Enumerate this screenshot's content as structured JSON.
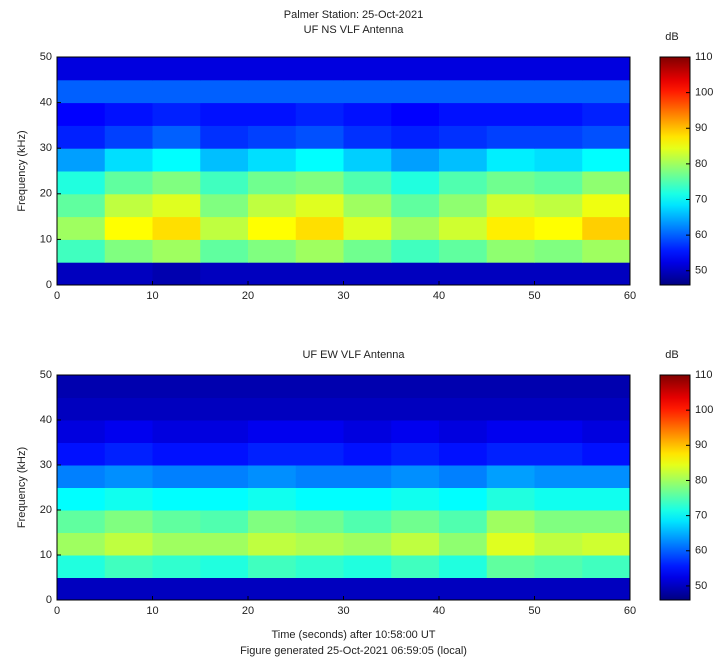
{
  "chart_data": [
    {
      "type": "heatmap",
      "title": "Palmer Station: 25-Oct-2021",
      "subtitle": "UF NS VLF Antenna",
      "y_label": "Frequency (kHz)",
      "colorbar_label": "dB",
      "colormap": "jet",
      "xbins": [
        0,
        5,
        10,
        15,
        20,
        25,
        30,
        35,
        40,
        45,
        50,
        55,
        60
      ],
      "ybins": [
        0,
        5,
        10,
        15,
        20,
        25,
        30,
        35,
        40,
        45,
        50
      ],
      "values": [
        [
          50,
          50,
          49,
          50,
          50,
          50,
          50,
          50,
          50,
          50,
          50,
          50
        ],
        [
          74,
          78,
          80,
          76,
          78,
          80,
          77,
          74,
          76,
          79,
          78,
          80
        ],
        [
          80,
          86,
          88,
          82,
          86,
          88,
          84,
          80,
          83,
          87,
          86,
          89
        ],
        [
          76,
          82,
          84,
          78,
          82,
          84,
          80,
          76,
          79,
          83,
          82,
          85
        ],
        [
          72,
          76,
          78,
          74,
          77,
          78,
          75,
          72,
          75,
          77,
          76,
          79
        ],
        [
          64,
          68,
          70,
          66,
          68,
          70,
          67,
          64,
          66,
          69,
          68,
          70
        ],
        [
          56,
          58,
          60,
          57,
          58,
          59,
          57,
          56,
          57,
          58,
          58,
          59
        ],
        [
          54,
          55,
          56,
          55,
          55,
          56,
          55,
          54,
          55,
          55,
          55,
          56
        ],
        [
          60,
          60,
          60,
          60,
          60,
          60,
          60,
          60,
          60,
          60,
          60,
          60
        ],
        [
          52,
          52,
          52,
          52,
          52,
          52,
          52,
          52,
          52,
          52,
          52,
          52
        ]
      ],
      "xlim": [
        0,
        60
      ],
      "xticks": [
        0,
        10,
        20,
        30,
        40,
        50,
        60
      ],
      "ylim": [
        0,
        50
      ],
      "yticks": [
        0,
        10,
        20,
        30,
        40,
        50
      ],
      "clim": [
        46,
        110
      ],
      "cticks": [
        50,
        60,
        70,
        80,
        90,
        100,
        110
      ]
    },
    {
      "type": "heatmap",
      "title": "UF EW VLF Antenna",
      "y_label": "Frequency (kHz)",
      "x_label": "Time (seconds) after 10:58:00 UT",
      "note": "Figure generated 25-Oct-2021 06:59:05 (local)",
      "colorbar_label": "dB",
      "colormap": "jet",
      "xbins": [
        0,
        5,
        10,
        15,
        20,
        25,
        30,
        35,
        40,
        45,
        50,
        55,
        60
      ],
      "ybins": [
        0,
        5,
        10,
        15,
        20,
        25,
        30,
        35,
        40,
        45,
        50
      ],
      "values": [
        [
          50,
          50,
          50,
          50,
          50,
          50,
          50,
          50,
          50,
          50,
          50,
          50
        ],
        [
          72,
          74,
          73,
          72,
          74,
          73,
          72,
          74,
          72,
          76,
          75,
          74
        ],
        [
          80,
          82,
          80,
          80,
          82,
          81,
          80,
          82,
          79,
          84,
          82,
          83
        ],
        [
          76,
          78,
          76,
          75,
          78,
          77,
          75,
          77,
          75,
          80,
          78,
          78
        ],
        [
          70,
          71,
          70,
          70,
          71,
          70,
          70,
          71,
          70,
          72,
          71,
          71
        ],
        [
          62,
          63,
          62,
          62,
          63,
          62,
          62,
          63,
          62,
          64,
          63,
          63
        ],
        [
          55,
          56,
          55,
          55,
          56,
          56,
          55,
          56,
          55,
          56,
          56,
          55
        ],
        [
          52,
          53,
          52,
          52,
          53,
          53,
          52,
          53,
          52,
          53,
          53,
          52
        ],
        [
          50,
          50,
          50,
          50,
          50,
          50,
          50,
          50,
          50,
          50,
          50,
          50
        ],
        [
          49,
          49,
          49,
          49,
          49,
          49,
          49,
          49,
          49,
          49,
          49,
          49
        ]
      ],
      "xlim": [
        0,
        60
      ],
      "xticks": [
        0,
        10,
        20,
        30,
        40,
        50,
        60
      ],
      "ylim": [
        0,
        50
      ],
      "yticks": [
        0,
        10,
        20,
        30,
        40,
        50
      ],
      "clim": [
        46,
        110
      ],
      "cticks": [
        50,
        60,
        70,
        80,
        90,
        100,
        110
      ]
    }
  ]
}
